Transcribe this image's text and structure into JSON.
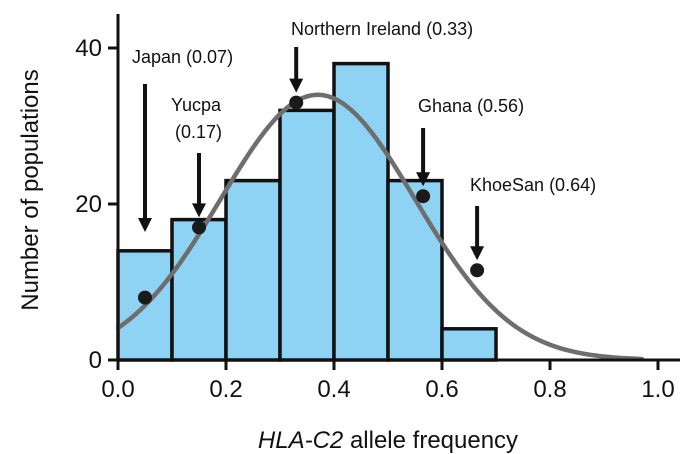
{
  "chart_data": {
    "type": "bar",
    "xlabel_italic": "HLA-C2",
    "xlabel_rest": " allele frequency",
    "ylabel": "Number of populations",
    "xlim": [
      0,
      1.0
    ],
    "ylim": [
      0,
      40
    ],
    "x_ticks": [
      0.0,
      0.2,
      0.4,
      0.6,
      0.8,
      1.0
    ],
    "x_tick_labels": [
      "0.0",
      "0.2",
      "0.4",
      "0.6",
      "0.8",
      "1.0"
    ],
    "y_ticks": [
      0,
      20,
      40
    ],
    "y_tick_labels": [
      "0",
      "20",
      "40"
    ],
    "grid": false,
    "bar_color": "#8fd3f4",
    "bar_edge_color": "#111111",
    "curve_color": "#6e6e6e",
    "bins": [
      {
        "x0": 0.0,
        "x1": 0.1,
        "value": 14
      },
      {
        "x0": 0.1,
        "x1": 0.2,
        "value": 18
      },
      {
        "x0": 0.2,
        "x1": 0.3,
        "value": 23
      },
      {
        "x0": 0.3,
        "x1": 0.4,
        "value": 32
      },
      {
        "x0": 0.4,
        "x1": 0.5,
        "value": 38
      },
      {
        "x0": 0.5,
        "x1": 0.6,
        "value": 23
      },
      {
        "x0": 0.6,
        "x1": 0.7,
        "value": 4
      }
    ],
    "fit_curve": {
      "mean": 0.37,
      "sd": 0.18,
      "peak": 34
    },
    "annotations": [
      {
        "line1": "Japan (0.07)",
        "line2": "",
        "x": 0.05,
        "y": 8
      },
      {
        "line1": "Yucpa",
        "line2": "(0.17)",
        "x": 0.15,
        "y": 17
      },
      {
        "line1": "Northern Ireland (0.33)",
        "line2": "",
        "x": 0.33,
        "y": 33
      },
      {
        "line1": "Ghana (0.56)",
        "line2": "",
        "x": 0.565,
        "y": 21
      },
      {
        "line1": "KhoeSan (0.64)",
        "line2": "",
        "x": 0.665,
        "y": 11.5
      }
    ]
  }
}
